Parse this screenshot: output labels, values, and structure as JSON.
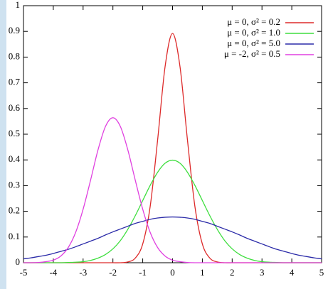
{
  "chart_data": {
    "type": "line",
    "x": [
      -5,
      -4.75,
      -4.5,
      -4.25,
      -4,
      -3.75,
      -3.5,
      -3.25,
      -3,
      -2.75,
      -2.5,
      -2.25,
      -2,
      -1.75,
      -1.5,
      -1.25,
      -1,
      -0.75,
      -0.5,
      -0.25,
      0,
      0.25,
      0.5,
      0.75,
      1,
      1.25,
      1.5,
      1.75,
      2,
      2.25,
      2.5,
      2.75,
      3,
      3.25,
      3.5,
      3.75,
      4,
      4.25,
      4.5,
      4.75,
      5
    ],
    "series": [
      {
        "name": "μ = 0, σ² = 0.2",
        "color": "#dd2a2a",
        "values": [
          0,
          0,
          0,
          0,
          0,
          0,
          0,
          0,
          0,
          0,
          0,
          0,
          0,
          0,
          0.003,
          0.018,
          0.073,
          0.219,
          0.478,
          0.763,
          0.892,
          0.763,
          0.478,
          0.219,
          0.073,
          0.018,
          0.003,
          0,
          0,
          0,
          0,
          0,
          0,
          0,
          0,
          0,
          0,
          0,
          0,
          0,
          0
        ]
      },
      {
        "name": "μ = 0, σ² = 1.0",
        "color": "#3ede3e",
        "values": [
          0,
          0,
          0,
          0,
          0,
          0,
          0.001,
          0.002,
          0.004,
          0.009,
          0.018,
          0.032,
          0.054,
          0.086,
          0.13,
          0.183,
          0.242,
          0.301,
          0.352,
          0.387,
          0.399,
          0.387,
          0.352,
          0.301,
          0.242,
          0.183,
          0.13,
          0.086,
          0.054,
          0.032,
          0.018,
          0.009,
          0.004,
          0.002,
          0.001,
          0,
          0,
          0,
          0,
          0,
          0
        ]
      },
      {
        "name": "μ = 0, σ² = 5.0",
        "color": "#2a2aa8",
        "values": [
          0.015,
          0.019,
          0.024,
          0.029,
          0.036,
          0.044,
          0.052,
          0.062,
          0.073,
          0.084,
          0.095,
          0.108,
          0.12,
          0.131,
          0.142,
          0.153,
          0.161,
          0.169,
          0.174,
          0.177,
          0.178,
          0.177,
          0.174,
          0.169,
          0.161,
          0.153,
          0.142,
          0.131,
          0.12,
          0.108,
          0.095,
          0.084,
          0.073,
          0.062,
          0.052,
          0.044,
          0.036,
          0.029,
          0.024,
          0.019,
          0.015
        ]
      },
      {
        "name": "μ = -2, σ² = 0.5",
        "color": "#e040e0",
        "values": [
          0,
          0,
          0.001,
          0.004,
          0.01,
          0.026,
          0.059,
          0.118,
          0.208,
          0.321,
          0.439,
          0.53,
          0.564,
          0.53,
          0.439,
          0.321,
          0.208,
          0.118,
          0.059,
          0.026,
          0.01,
          0.004,
          0.001,
          0,
          0,
          0,
          0,
          0,
          0,
          0,
          0,
          0,
          0,
          0,
          0,
          0,
          0,
          0,
          0,
          0,
          0
        ]
      }
    ],
    "xlim": [
      -5,
      5
    ],
    "xticks": [
      -5,
      -4,
      -3,
      -2,
      -1,
      0,
      1,
      2,
      3,
      4,
      5
    ],
    "ylim": [
      0,
      1
    ],
    "yticks": [
      0,
      0.1,
      0.2,
      0.3,
      0.4,
      0.5,
      0.6,
      0.7,
      0.8,
      0.9,
      1
    ],
    "grid": false,
    "legend": "top-right"
  }
}
